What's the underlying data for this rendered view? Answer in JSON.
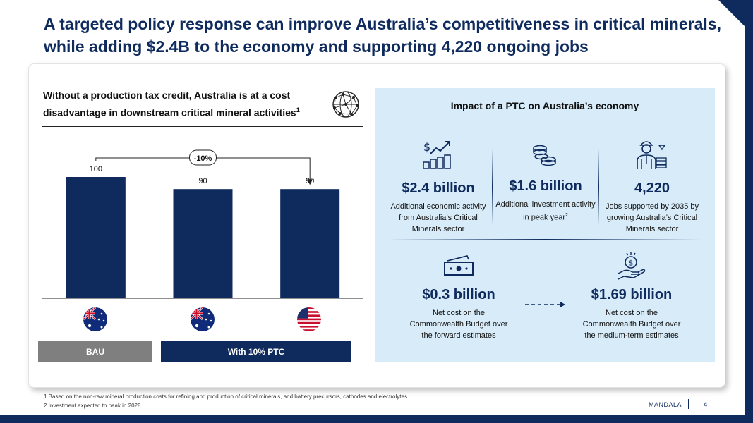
{
  "title": "A targeted policy response can improve Australia’s competitiveness in critical minerals, while adding $2.4B to the economy and supporting 4,220 ongoing jobs",
  "left": {
    "heading": "Without a production tax credit, Australia is at a cost disadvantage in downstream critical mineral activities",
    "heading_sup": "1",
    "change_label": "-10%",
    "categories": [
      {
        "label": "BAU",
        "color": "#7f7f7f"
      },
      {
        "label": "With 10% PTC",
        "color": "#0f2b5e"
      }
    ],
    "flags": [
      "australia-flag",
      "australia-flag",
      "usa-flag"
    ]
  },
  "chart_data": {
    "type": "bar",
    "categories": [
      "",
      "",
      ""
    ],
    "values": [
      100,
      90,
      90
    ],
    "data_labels": [
      "100",
      "90",
      "90"
    ],
    "bar_color": "#0f2b5e",
    "annotation": "-10%",
    "title": "",
    "xlabel": "",
    "ylabel": "",
    "ylim": [
      0,
      100
    ]
  },
  "right": {
    "heading": "Impact of a PTC on Australia’s economy",
    "stats": [
      {
        "value": "$2.4 billion",
        "desc": "Additional economic activity from Australia’s Critical Minerals sector",
        "icon": "growth-chart-icon"
      },
      {
        "value": "$1.6 billion",
        "desc": "Additional investment activity in peak year",
        "desc_sup": "2",
        "icon": "coin-stack-icon"
      },
      {
        "value": "4,220",
        "desc": "Jobs supported by 2035 by growing Australia’s Critical Minerals sector",
        "icon": "worker-icon"
      },
      {
        "value": "$0.3 billion",
        "desc": "Net cost on the Commonwealth Budget over the forward estimates",
        "icon": "cash-icon"
      },
      {
        "value": "$1.69 billion",
        "desc": "Net cost on the Commonwealth Budget over the medium-term estimates",
        "icon": "hand-coin-icon"
      }
    ]
  },
  "footnotes": [
    "1 Based on the non-raw mineral production costs for refining and production of critical minerals, and battery precursors, cathodes and electrolytes.",
    "2 Investment expected to peak in 2028"
  ],
  "brand": "MANDALA",
  "page_number": "4",
  "colors": {
    "navy": "#0f2b5e",
    "panel": "#d7ebf8",
    "grey": "#7f7f7f"
  }
}
